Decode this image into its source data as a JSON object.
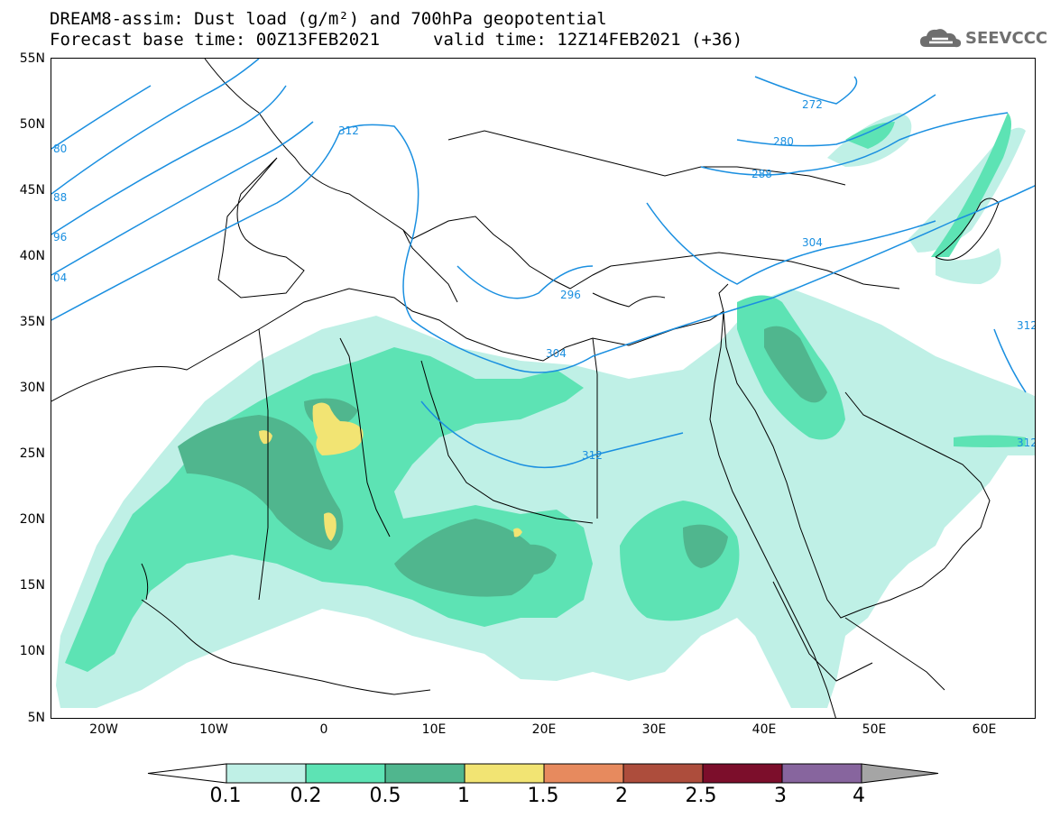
{
  "header": {
    "title_line1": "DREAM8-assim: Dust load (g/m²) and 700hPa geopotential",
    "base_time_text": "Forecast base time: 00Z13FEB2021",
    "valid_time_text": "valid time: 12Z14FEB2021 (+36)"
  },
  "logo": {
    "text": "SEEVCCC",
    "icon": "cloud-icon"
  },
  "map": {
    "lat_labels": [
      "55N",
      "50N",
      "45N",
      "40N",
      "35N",
      "30N",
      "25N",
      "20N",
      "15N",
      "10N",
      "5N"
    ],
    "lon_labels": [
      "20W",
      "10W",
      "0",
      "10E",
      "20E",
      "30E",
      "40E",
      "50E",
      "60E"
    ],
    "contour_labels": [
      "80",
      "88",
      "96",
      "04",
      "312",
      "272",
      "280",
      "288",
      "304",
      "296",
      "304",
      "312",
      "312",
      "312"
    ]
  },
  "colorbar": {
    "labels": [
      "0.1",
      "0.2",
      "0.5",
      "1",
      "1.5",
      "2",
      "2.5",
      "3",
      "4"
    ],
    "colors": [
      "#ffffff",
      "#bff0e6",
      "#5de3b4",
      "#50b68e",
      "#f2e473",
      "#e78a5e",
      "#ad4d3c",
      "#7c0e2b",
      "#87659e",
      "#a5a5a5"
    ]
  },
  "colors": {
    "dust_light": "#bff0e6",
    "dust_mid": "#5de3b4",
    "dust_dark": "#50b68e",
    "dust_yellow": "#f2e473",
    "contour": "#1a8fe0",
    "coast": "#000000"
  }
}
